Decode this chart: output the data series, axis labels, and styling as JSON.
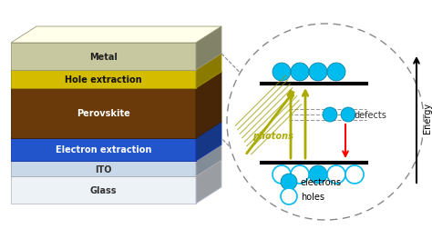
{
  "layers": [
    {
      "name": "Glass",
      "color": "#e8eef4",
      "edge": "#cccccc",
      "text_color": "#333333"
    },
    {
      "name": "ITO",
      "color": "#d0dce8",
      "edge": "#aaaaaa",
      "text_color": "#333333"
    },
    {
      "name": "Electron extraction",
      "color": "#2255cc",
      "edge": "#1133aa",
      "text_color": "#ffffff"
    },
    {
      "name": "Perovskite",
      "color": "#6b3a0a",
      "edge": "#3d1f00",
      "text_color": "#ffffff"
    },
    {
      "name": "Hole extraction",
      "color": "#e8c800",
      "edge": "#b09400",
      "text_color": "#111111"
    },
    {
      "name": "Metal",
      "color": "#c8c8a0",
      "edge": "#999977",
      "text_color": "#222222"
    }
  ],
  "e_color": "#00bbee",
  "e_edge": "#007799",
  "h_color": "#ffffff",
  "h_edge": "#00bbee",
  "photon_color": "#aaaa00",
  "photon_label": "photons",
  "defect_label": "defects",
  "legend_electrons": "electrons",
  "legend_holes": "holes",
  "bg_color": "#ffffff"
}
